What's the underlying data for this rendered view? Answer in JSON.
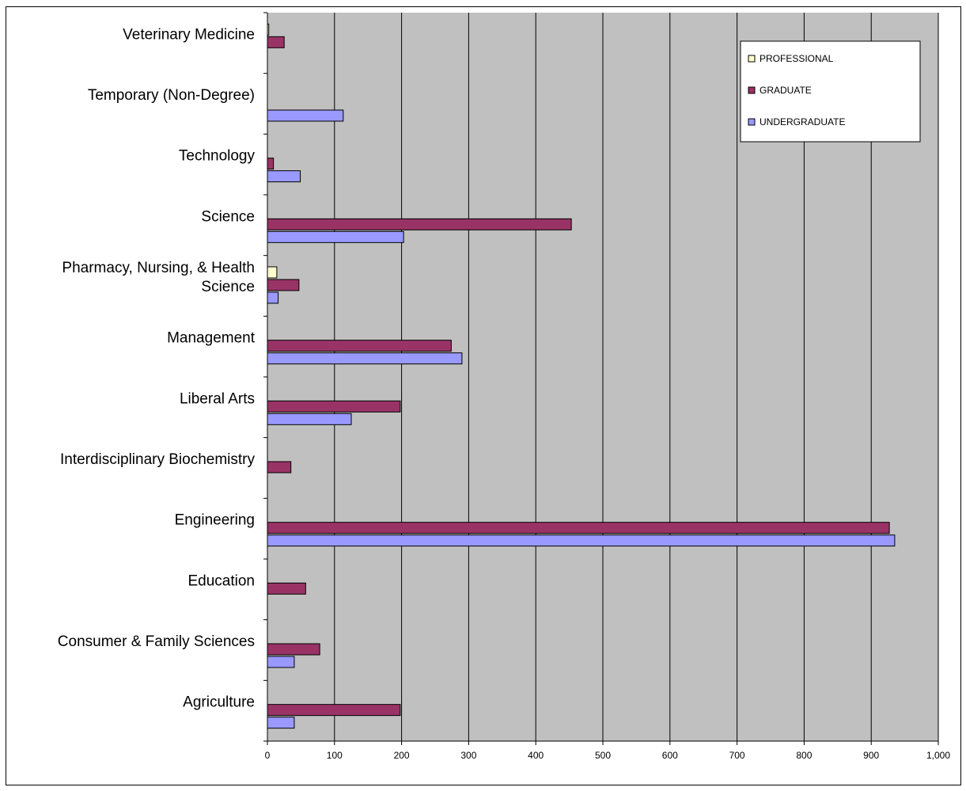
{
  "chart_data": {
    "type": "bar",
    "orientation": "horizontal",
    "title": "",
    "xlabel": "",
    "ylabel": "",
    "xlim": [
      0,
      1000
    ],
    "x_ticks": [
      0,
      100,
      200,
      300,
      400,
      500,
      600,
      700,
      800,
      900,
      1000
    ],
    "x_tick_labels": [
      "0",
      "100",
      "200",
      "300",
      "400",
      "500",
      "600",
      "700",
      "800",
      "900",
      "1,000"
    ],
    "grid": "vertical",
    "legend_position": "top-right",
    "categories": [
      "Agriculture",
      "Consumer & Family Sciences",
      "Education",
      "Engineering",
      "Interdisciplinary Biochemistry",
      "Liberal Arts",
      "Management",
      "Pharmacy, Nursing, & Health Science",
      "Science",
      "Technology",
      "Temporary (Non-Degree)",
      "Veterinary Medicine"
    ],
    "category_label_lines": [
      [
        "Agriculture"
      ],
      [
        "Consumer & Family Sciences"
      ],
      [
        "Education"
      ],
      [
        "Engineering"
      ],
      [
        "Interdisciplinary Biochemistry"
      ],
      [
        "Liberal Arts"
      ],
      [
        "Management"
      ],
      [
        "Pharmacy, Nursing, & Health",
        "Science"
      ],
      [
        "Science"
      ],
      [
        "Technology"
      ],
      [
        "Temporary (Non-Degree)"
      ],
      [
        "Veterinary Medicine"
      ]
    ],
    "series": [
      {
        "name": "PROFESSIONAL",
        "color": "#ffffcc",
        "values": [
          0,
          0,
          0,
          0,
          0,
          0,
          0,
          14,
          0,
          0,
          0,
          2
        ]
      },
      {
        "name": "GRADUATE",
        "color": "#993366",
        "values": [
          198,
          78,
          57,
          927,
          35,
          198,
          274,
          47,
          453,
          9,
          0,
          25
        ]
      },
      {
        "name": "UNDERGRADUATE",
        "color": "#9999ff",
        "values": [
          40,
          40,
          0,
          935,
          0,
          125,
          290,
          16,
          203,
          49,
          113,
          0
        ]
      }
    ],
    "colors": {
      "plot_background": "#c0c0c0",
      "gridline": "#000000",
      "bar_outline": "#000000"
    }
  }
}
